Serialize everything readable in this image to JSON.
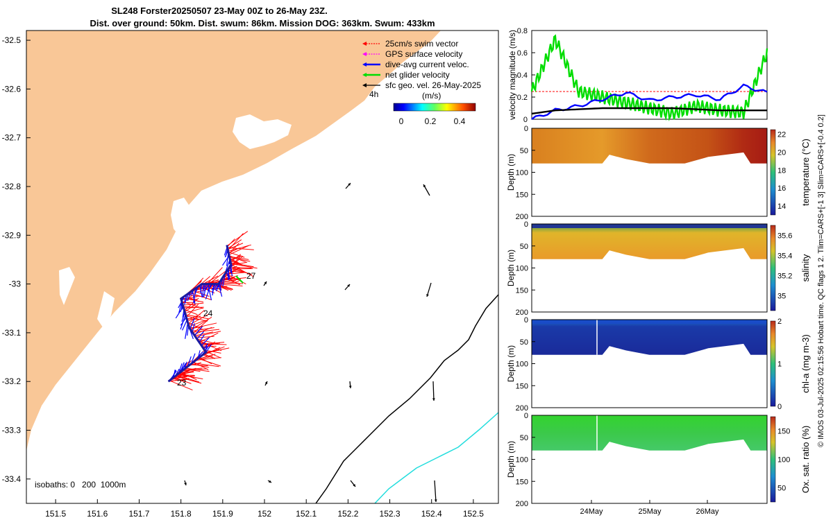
{
  "colors": {
    "land": "#f9c797",
    "swim": "#ff0000",
    "gps": "#ff00ff",
    "dive": "#0000ff",
    "net": "#00dd00",
    "sfc": "#000000",
    "iso200": "#000000",
    "iso1000": "#22dddd",
    "track": "#1a1aa0"
  },
  "map": {
    "title_line1": "SL248 Forster20250507 23-May 00Z to 26-May 23Z.",
    "title_line2": "Dist. over ground: 50km. Dist. swum: 86km. Mission DOG: 363km. Swum: 433km",
    "isobaths_label": "isobaths: 0   200  1000m",
    "legend": [
      {
        "label": "25cm/s swim vector",
        "color": "#ff0000"
      },
      {
        "label": "GPS surface velocity",
        "color": "#ff00ff"
      },
      {
        "label": "dive-avg current veloc.",
        "color": "#0000ff"
      },
      {
        "label": "net glider velocity",
        "color": "#00dd00"
      },
      {
        "label": "sfc geo. vel. 26-May-2025",
        "color": "#000000"
      }
    ],
    "colorbar": {
      "label": "(m/s)",
      "ticks": [
        "0",
        "0.2",
        "0.4"
      ],
      "duration_label": "4h"
    },
    "day_labels": [
      "23",
      "24",
      "27"
    ]
  },
  "chart_data": [
    {
      "type": "map",
      "title": "SL248 Forster20250507 23-May 00Z to 26-May 23Z.",
      "xlim": [
        151.43,
        152.56
      ],
      "ylim": [
        -33.45,
        -32.48
      ],
      "xticks": [
        "151.5",
        "151.6",
        "151.7",
        "151.8",
        "151.9",
        "152",
        "152.1",
        "152.2",
        "152.3",
        "152.4",
        "152.5"
      ],
      "yticks": [
        "-32.5",
        "-32.6",
        "-32.7",
        "-32.8",
        "-32.9",
        "-33",
        "-33.1",
        "-33.2",
        "-33.3",
        "-33.4"
      ],
      "glider_track": [
        [
          151.77,
          -33.2
        ],
        [
          151.8,
          -33.18
        ],
        [
          151.86,
          -33.14
        ],
        [
          151.82,
          -33.09
        ],
        [
          151.8,
          -33.03
        ],
        [
          151.85,
          -33.0
        ],
        [
          151.89,
          -33.0
        ],
        [
          151.92,
          -32.96
        ],
        [
          151.91,
          -32.92
        ]
      ]
    },
    {
      "type": "line",
      "ylabel": "velocity magnitude (m/s)",
      "ylim": [
        0,
        0.8
      ],
      "yticks": [
        "0",
        "0.2",
        "0.4",
        "0.6",
        "0.8"
      ],
      "series": [
        {
          "name": "25cm/s swim",
          "color": "#ff0000",
          "values": [
            0.25,
            0.25,
            0.25,
            0.25,
            0.25,
            0.25,
            0.25,
            0.25,
            0.25,
            0.25,
            0.25
          ]
        },
        {
          "name": "net glider velocity",
          "color": "#00dd00",
          "values": [
            0.25,
            0.72,
            0.25,
            0.2,
            0.15,
            0.1,
            0.05,
            0.12,
            0.08,
            0.06,
            0.6
          ]
        },
        {
          "name": "dive-avg current",
          "color": "#0000ff",
          "values": [
            0.0,
            0.08,
            0.12,
            0.18,
            0.24,
            0.17,
            0.2,
            0.22,
            0.18,
            0.3,
            0.24
          ]
        },
        {
          "name": "sfc geo vel",
          "color": "#000000",
          "values": [
            0.05,
            0.08,
            0.09,
            0.1,
            0.1,
            0.1,
            0.1,
            0.09,
            0.08,
            0.08,
            0.08
          ]
        }
      ]
    },
    {
      "type": "heatmap",
      "variable": "temperature",
      "ylabel": "Depth (m)",
      "cblabel": "temperature (°C)",
      "cticks": [
        "14",
        "16",
        "18",
        "20",
        "22"
      ],
      "yticks": [
        "0",
        "50",
        "100",
        "150",
        "200"
      ],
      "range": [
        13,
        22.5
      ]
    },
    {
      "type": "heatmap",
      "variable": "salinity",
      "ylabel": "Depth (m)",
      "cblabel": "salinity",
      "cticks": [
        "35",
        "35.2",
        "35.4",
        "35.6"
      ],
      "yticks": [
        "0",
        "50",
        "100",
        "150",
        "200"
      ],
      "range": [
        34.85,
        35.7
      ]
    },
    {
      "type": "heatmap",
      "variable": "chl-a",
      "ylabel": "Depth (m)",
      "cblabel": "chl-a (mg m-3)",
      "cticks": [
        "0",
        "1",
        "2"
      ],
      "yticks": [
        "0",
        "50",
        "100",
        "150",
        "200"
      ],
      "range": [
        0,
        2
      ]
    },
    {
      "type": "heatmap",
      "variable": "oxygen",
      "ylabel": "Depth (m)",
      "cblabel": "Ox. sat. ratio (%)",
      "cticks": [
        "50",
        "100",
        "150"
      ],
      "yticks": [
        "0",
        "50",
        "100",
        "150",
        "200"
      ],
      "range": [
        25,
        175
      ]
    }
  ],
  "time_axis": {
    "labels": [
      "24May",
      "25May",
      "26May"
    ]
  },
  "side_note": "© IMOS 03-Jul-2025 02:15:56 Hobart time. QC flags 1  2. Tlim=CARS+[-1 3] Slim=CARS+[-0.4 0.2]"
}
